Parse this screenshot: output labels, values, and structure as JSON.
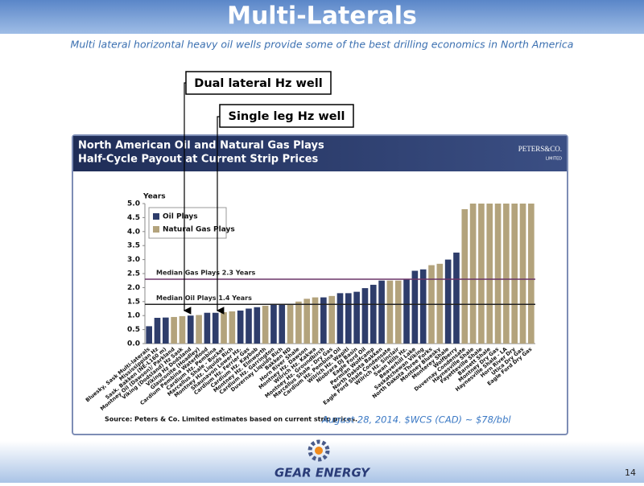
{
  "slide": {
    "title": "Multi-Laterals",
    "subtitle": "Multi lateral horizontal heavy oil wells provide some of the best drilling economics in North America",
    "callouts": [
      "Dual lateral Hz well",
      "Single leg Hz well"
    ],
    "brand": "PETERS&CO.",
    "brand_sub": "LIMITED",
    "source": "Source: Peters & Co. Limited estimates based on current strip prices.",
    "note": "August 28, 2014. $WCS (CAD) ~ $78/bbl",
    "footer_logo": "GEAR ENERGY",
    "page_number": "14"
  },
  "chart_data": {
    "type": "bar",
    "title": "North American Oil and Natural Gas Plays",
    "subtitle": "Half-Cycle Payout at Current Strip Prices",
    "y_label": "Years",
    "categories": [
      "Bluesky, Sask Multi-laterals",
      "Mississippian Hz",
      "Sask. Bakken (NE-L160 m)",
      "Montney Oil (Dawson)/ Parkland",
      "Viking (Dodsland) Hz Sask",
      "Viking Hz Dodsland",
      "Glauconite (Hoadley)",
      "Cardium Pembina Waterflood",
      "Cardium Hz. Pembina",
      "Marcellus Shale - Bucket",
      "Montney Hz. Liquids Rich",
      "Shaunavon Lower Hz.",
      "Cardium Hz. Ferrier Gas",
      "Cardium Hz. Kaybob",
      "Montney Hz. Elmworth",
      "Cardium Hz. Garrington",
      "Duvernay Liquids Rich",
      "Bakken ND",
      "Horn River Shale",
      "Montney Hz. Dawson",
      "Wilrich Hz. Kakwa",
      "Montney Hz. Groundbirch",
      "Marcellus Shale - Dry Gas",
      "Cardium Hz. Pembina Oil",
      "Wilrich Hz. Wapiti",
      "Niobrara DJ Basin",
      "Eagle Ford Oil",
      "Permian Wolfcamp",
      "North Dakota Bakken",
      "Eagle Ford Shale Condensate",
      "Wilrich Hz. Sinclair",
      "Swan Hills Hz.",
      "Beaverhill Lake",
      "Saskatchewan Viking",
      "North Dakota Three Forks",
      "Montney Bluesky",
      "Monterey Shale",
      "Wolfberry",
      "Duvernay Condensate",
      "Haynesville Shale",
      "Fayetteville Shale",
      "Barnett Shale",
      "Montney Dry Gas",
      "Haynesville Shale - LA",
      "Horn River Dry",
      "Utica Dry Gas",
      "Eagle Ford Dry Gas"
    ],
    "series": [
      {
        "name": "Oil Plays",
        "color": "#2e3d6b",
        "values": [
          0.62,
          0.92,
          0.93,
          null,
          null,
          1.0,
          null,
          1.1,
          1.1,
          null,
          null,
          1.18,
          1.25,
          1.3,
          null,
          1.38,
          1.4,
          null,
          null,
          null,
          null,
          1.65,
          null,
          1.8,
          1.8,
          1.85,
          1.98,
          2.1,
          2.25,
          null,
          null,
          2.3,
          2.6,
          2.65,
          null,
          null,
          3.0,
          3.25,
          null,
          null,
          null,
          null,
          null,
          null,
          null,
          null,
          null
        ]
      },
      {
        "name": "Natural Gas Plays",
        "color": "#b3a37c",
        "values": [
          null,
          null,
          null,
          0.95,
          0.98,
          null,
          1.02,
          null,
          null,
          1.12,
          1.15,
          null,
          null,
          null,
          1.35,
          null,
          null,
          1.4,
          1.5,
          1.6,
          1.65,
          null,
          1.7,
          null,
          null,
          null,
          null,
          null,
          null,
          2.25,
          2.25,
          null,
          null,
          null,
          2.8,
          2.85,
          null,
          null,
          4.8,
          5.0,
          5.0,
          5.0,
          5.0,
          5.0,
          5.0,
          5.0,
          5.0
        ]
      }
    ],
    "reference_lines": [
      {
        "label": "Median Gas Plays 2.3 Years",
        "value": 2.3,
        "color": "#6b3568"
      },
      {
        "label": "Median Oil Plays 1.4 Years",
        "value": 1.4,
        "color": "#222222"
      }
    ],
    "ylim": [
      0,
      5
    ],
    "yticks": [
      {
        "value": 0,
        "label": "0.0"
      },
      {
        "value": 0.5,
        "label": "0.5"
      },
      {
        "value": 1,
        "label": "1.0"
      },
      {
        "value": 1.5,
        "label": "1.5"
      },
      {
        "value": 2,
        "label": "2.0"
      },
      {
        "value": 2.5,
        "label": "2.5"
      },
      {
        "value": 3,
        "label": "3.0"
      },
      {
        "value": 3.5,
        "label": "3.5"
      },
      {
        "value": 4,
        "label": "4.0"
      },
      {
        "value": 4.5,
        "label": "4.5"
      },
      {
        "value": 5,
        "label": "5.0"
      }
    ],
    "legend": "top-left"
  }
}
